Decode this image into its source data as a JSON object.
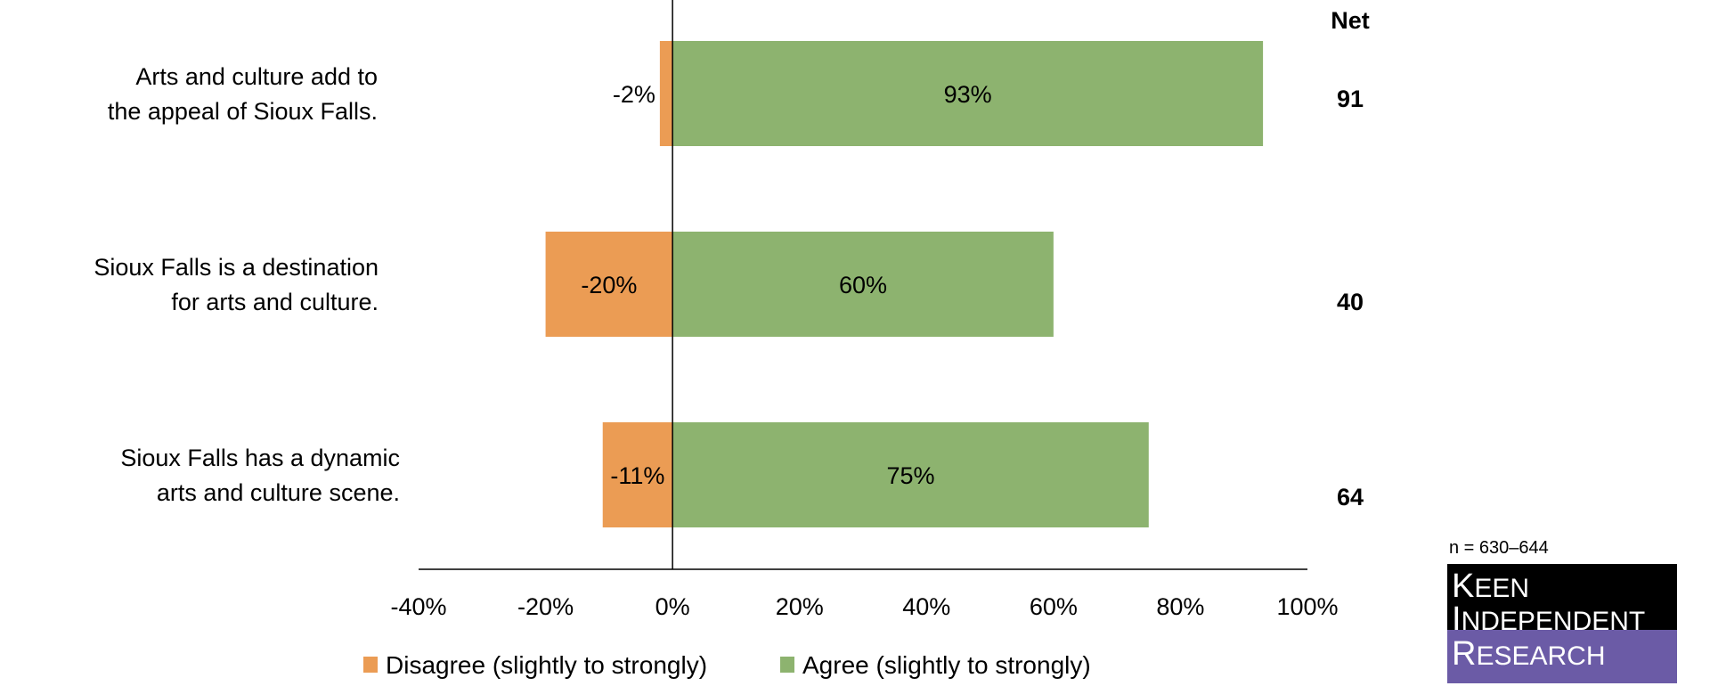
{
  "chart_data": {
    "type": "bar",
    "orientation": "horizontal",
    "stacked": "diverging",
    "categories": [
      [
        "Arts and culture add to",
        "the appeal of Sioux Falls."
      ],
      [
        "Sioux Falls is a destination",
        "for arts and culture."
      ],
      [
        "Sioux Falls has a dynamic",
        "arts and culture scene."
      ]
    ],
    "series": [
      {
        "name": "Disagree (slightly to strongly)",
        "values": [
          -2,
          -20,
          -11
        ],
        "labels": [
          "-2%",
          "-20%",
          "-11%"
        ],
        "color": "#EB9C54"
      },
      {
        "name": "Agree (slightly to strongly)",
        "values": [
          93,
          60,
          75
        ],
        "labels": [
          "93%",
          "60%",
          "75%"
        ],
        "color": "#8DB36F"
      }
    ],
    "net": {
      "header": "Net",
      "values": [
        "91",
        "40",
        "64"
      ]
    },
    "xlim": [
      -40,
      100
    ],
    "xticks": [
      "-40%",
      "-20%",
      "0%",
      "20%",
      "40%",
      "60%",
      "80%",
      "100%"
    ],
    "xtick_values": [
      -40,
      -20,
      0,
      20,
      40,
      60,
      80,
      100
    ],
    "grid": false,
    "legend_position": "bottom",
    "note": "n = 630–644"
  },
  "logo": {
    "line1_initial": "K",
    "line1_rest": "EEN",
    "line2_initial": "I",
    "line2_rest": "NDEPENDENT",
    "line3_initial": "R",
    "line3_rest": "ESEARCH",
    "top_color": "#000000",
    "bottom_color": "#6B5BA6"
  }
}
